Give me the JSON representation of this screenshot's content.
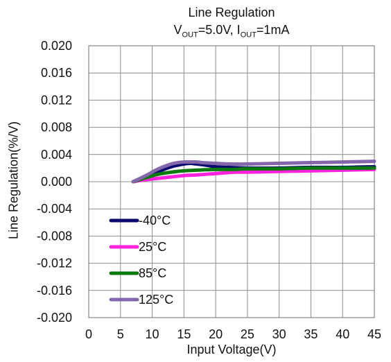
{
  "chart_data": {
    "type": "line",
    "title": "Line Regulation",
    "subtitle": {
      "v_main": "V",
      "v_sub": "OUT",
      "v_rest": "=5.0V, ",
      "i_main": "I",
      "i_sub": "OUT",
      "i_rest": "=1mA"
    },
    "xlabel": "Input Voltage(V)",
    "ylabel": "Line Regulation(%/V)",
    "xlim": [
      0,
      45
    ],
    "ylim": [
      -0.02,
      0.02
    ],
    "x_ticks": [
      0,
      5,
      10,
      15,
      20,
      25,
      30,
      35,
      40,
      45
    ],
    "x_tick_labels": [
      "0",
      "5",
      "10",
      "15",
      "20",
      "25",
      "30",
      "35",
      "40",
      "45"
    ],
    "y_ticks": [
      0.02,
      0.016,
      0.012,
      0.008,
      0.004,
      0.0,
      -0.004,
      -0.008,
      -0.012,
      -0.016,
      -0.02
    ],
    "y_tick_labels": [
      "0.020",
      "0.016",
      "0.012",
      "0.008",
      "0.004",
      "0.000",
      "-0.004",
      "-0.008",
      "-0.012",
      "-0.016",
      "-0.020"
    ],
    "grid": true,
    "legend_position": "bottom-left",
    "series": [
      {
        "name": "-40°C",
        "color": "#0a0a6e",
        "x": [
          7,
          9,
          11,
          13,
          15,
          16,
          17,
          18,
          20,
          22,
          25,
          30,
          35,
          40,
          45
        ],
        "y": [
          0.0,
          0.0007,
          0.0015,
          0.0022,
          0.0026,
          0.0027,
          0.0026,
          0.0025,
          0.0022,
          0.0021,
          0.002,
          0.002,
          0.0021,
          0.0021,
          0.0022
        ]
      },
      {
        "name": "25°C",
        "color": "#ff22dd",
        "x": [
          7,
          9,
          11,
          13,
          15,
          17,
          20,
          23,
          25,
          30,
          35,
          40,
          45
        ],
        "y": [
          0.0,
          0.0003,
          0.0005,
          0.0007,
          0.0009,
          0.001,
          0.0012,
          0.0014,
          0.0014,
          0.0015,
          0.0016,
          0.0017,
          0.0018
        ]
      },
      {
        "name": "85°C",
        "color": "#0a7a0a",
        "x": [
          7,
          9,
          11,
          13,
          15,
          17,
          20,
          23,
          25,
          30,
          35,
          40,
          45
        ],
        "y": [
          0.0,
          0.0006,
          0.0011,
          0.0014,
          0.0016,
          0.0017,
          0.0018,
          0.0018,
          0.0019,
          0.0019,
          0.002,
          0.002,
          0.002
        ]
      },
      {
        "name": "125°C",
        "color": "#8466aa",
        "x": [
          7,
          9,
          11,
          13,
          14,
          15,
          16,
          17,
          18,
          20,
          22,
          25,
          30,
          35,
          40,
          45
        ],
        "y": [
          0.0,
          0.0009,
          0.0019,
          0.0026,
          0.0028,
          0.0029,
          0.0029,
          0.0029,
          0.0028,
          0.0027,
          0.0026,
          0.0026,
          0.0027,
          0.0028,
          0.0029,
          0.003
        ]
      }
    ]
  }
}
